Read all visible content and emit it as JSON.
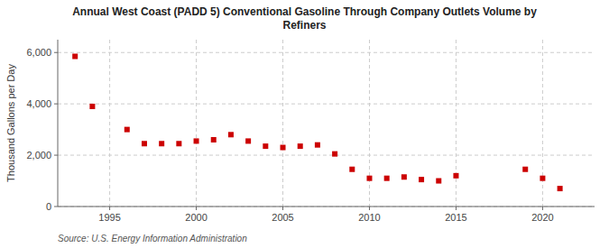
{
  "chart_data": {
    "type": "scatter",
    "title": "Annual West Coast (PADD 5) Conventional Gasoline Through Company Outlets Volume by\nRefiners",
    "y_label": "Thousand Gallons per Day",
    "source": "Source: U.S. Energy Information Administration",
    "x": [
      1993,
      1994,
      1996,
      1997,
      1998,
      1999,
      2000,
      2001,
      2002,
      2003,
      2004,
      2005,
      2006,
      2007,
      2008,
      2009,
      2010,
      2011,
      2012,
      2013,
      2014,
      2015,
      2019,
      2020,
      2021
    ],
    "values": [
      5850,
      3900,
      3000,
      2450,
      2450,
      2450,
      2550,
      2600,
      2800,
      2550,
      2350,
      2300,
      2350,
      2400,
      2050,
      1450,
      1100,
      1100,
      1150,
      1050,
      1000,
      1200,
      1450,
      1100,
      700
    ],
    "color": "#cc0000",
    "marker": "square",
    "xlim": [
      1992.0,
      2023.0
    ],
    "ylim": [
      0,
      6500
    ],
    "xticks": [
      1995,
      2000,
      2005,
      2010,
      2015,
      2020
    ],
    "yticks": [
      0,
      {
        "value": 2000,
        "label": "2,000"
      },
      {
        "value": 4000,
        "label": "4,000"
      },
      {
        "value": 6000,
        "label": "6,000"
      }
    ],
    "grid": true
  }
}
